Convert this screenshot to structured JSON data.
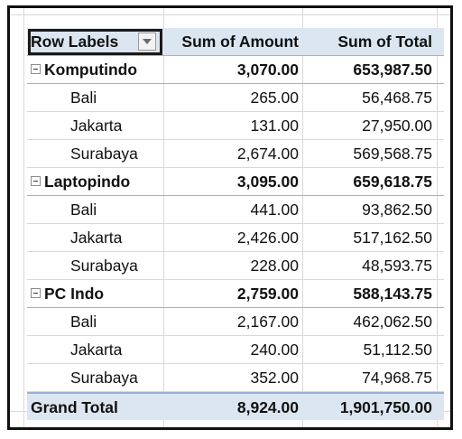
{
  "pivot": {
    "header": {
      "row_labels": "Row Labels",
      "sum_amount": "Sum of Amount",
      "sum_total": "Sum of Total"
    },
    "groups": [
      {
        "name": "Komputindo",
        "amount": "3,070.00",
        "total": "653,987.50",
        "rows": [
          {
            "city": "Bali",
            "amount": "265.00",
            "total": "56,468.75"
          },
          {
            "city": "Jakarta",
            "amount": "131.00",
            "total": "27,950.00"
          },
          {
            "city": "Surabaya",
            "amount": "2,674.00",
            "total": "569,568.75"
          }
        ]
      },
      {
        "name": "Laptopindo",
        "amount": "3,095.00",
        "total": "659,618.75",
        "rows": [
          {
            "city": "Bali",
            "amount": "441.00",
            "total": "93,862.50"
          },
          {
            "city": "Jakarta",
            "amount": "2,426.00",
            "total": "517,162.50"
          },
          {
            "city": "Surabaya",
            "amount": "228.00",
            "total": "48,593.75"
          }
        ]
      },
      {
        "name": "PC Indo",
        "amount": "2,759.00",
        "total": "588,143.75",
        "rows": [
          {
            "city": "Bali",
            "amount": "2,167.00",
            "total": "462,062.50"
          },
          {
            "city": "Jakarta",
            "amount": "240.00",
            "total": "51,112.50"
          },
          {
            "city": "Surabaya",
            "amount": "352.00",
            "total": "74,968.75"
          }
        ]
      }
    ],
    "grand_total": {
      "label": "Grand Total",
      "amount": "8,924.00",
      "total": "1,901,750.00"
    }
  },
  "colors": {
    "header_fill": "#dce6f1",
    "border_blue": "#95b3d7",
    "gridline": "#d9d9d9"
  },
  "icons": {
    "filter_dropdown": "dropdown-arrow-icon",
    "collapse": "collapse-minus-icon"
  }
}
